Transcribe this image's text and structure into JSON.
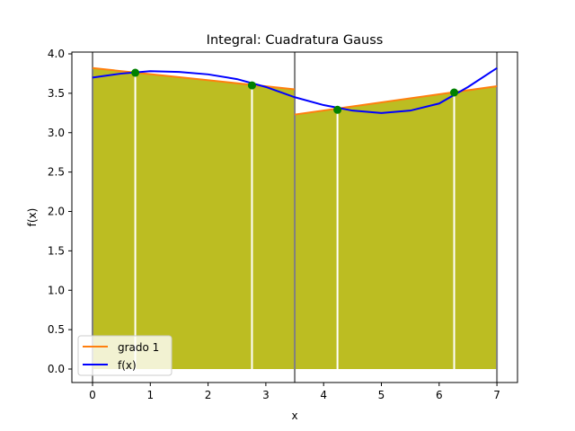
{
  "chart_data": {
    "type": "line",
    "title": "Integral: Cuadratura Gauss",
    "xlabel": "x",
    "ylabel": "f(x)",
    "xlim": [
      -0.35,
      7.35
    ],
    "ylim": [
      -0.18,
      4.0
    ],
    "grid": false,
    "legend_position": "lower left",
    "xticks": [
      "0",
      "1",
      "2",
      "3",
      "4",
      "5",
      "6",
      "7"
    ],
    "yticks": [
      "0.0",
      "0.5",
      "1.0",
      "1.5",
      "2.0",
      "2.5",
      "3.0",
      "3.5",
      "4.0"
    ],
    "series": [
      {
        "name": "grado 1",
        "color": "#ff7f0e",
        "segments": [
          {
            "x": [
              0,
              3.5
            ],
            "y": [
              3.82,
              3.55
            ]
          },
          {
            "x": [
              3.5,
              7
            ],
            "y": [
              3.23,
              3.59
            ]
          }
        ]
      },
      {
        "name": "f(x)",
        "color": "#0000ff",
        "x": [
          0,
          0.5,
          1,
          1.5,
          2,
          2.5,
          3,
          3.5,
          4,
          4.5,
          5,
          5.5,
          6,
          6.5,
          7
        ],
        "y": [
          3.7,
          3.75,
          3.78,
          3.77,
          3.74,
          3.68,
          3.58,
          3.45,
          3.35,
          3.28,
          3.25,
          3.28,
          3.37,
          3.58,
          3.82
        ]
      }
    ],
    "gauss_points": {
      "color": "#008000",
      "x": [
        0.74,
        2.76,
        4.24,
        6.26
      ],
      "y": [
        3.76,
        3.6,
        3.29,
        3.51
      ]
    },
    "fill_color": "#bcbd22",
    "interval_boundaries": [
      0,
      3.5,
      7
    ],
    "legend": [
      "grado 1",
      "f(x)"
    ]
  }
}
